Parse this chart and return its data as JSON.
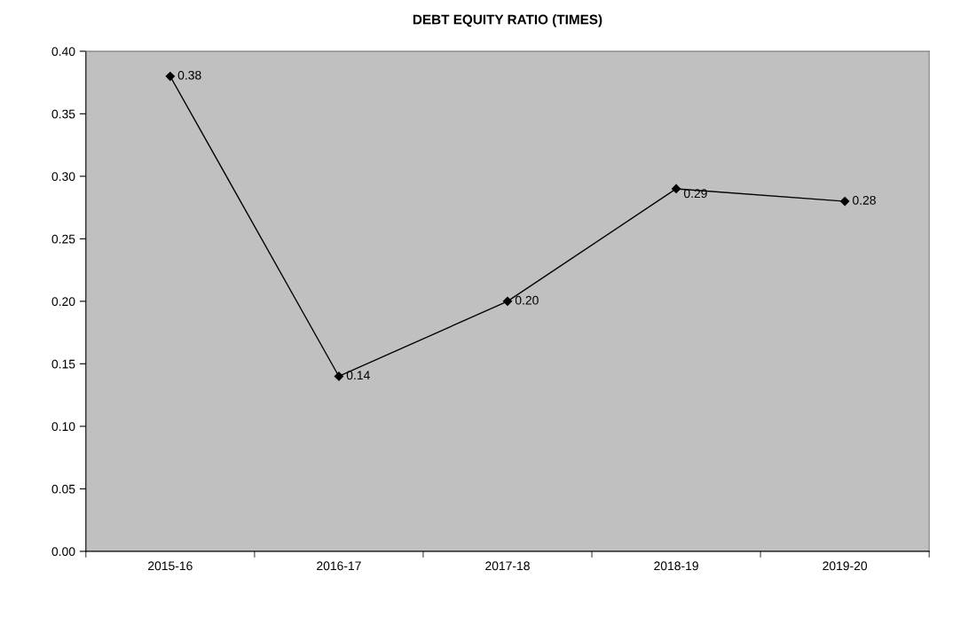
{
  "chart_data": {
    "type": "line",
    "title": "DEBT EQUITY RATIO (TIMES)",
    "categories": [
      "2015-16",
      "2016-17",
      "2017-18",
      "2018-19",
      "2019-20"
    ],
    "series": [
      {
        "color": "#000000",
        "values": [
          0.38,
          0.14,
          0.2,
          0.29,
          0.28
        ],
        "value_labels": [
          "0.38",
          "0.14",
          "0.20",
          "0.29",
          "0.28"
        ]
      }
    ],
    "ylim": [
      0,
      0.4
    ],
    "yticks": [
      {
        "value": 0,
        "label": "0.00"
      },
      {
        "value": 0.05,
        "label": "0.05"
      },
      {
        "value": 0.1,
        "label": "0.10"
      },
      {
        "value": 0.15,
        "label": "0.15"
      },
      {
        "value": 0.2,
        "label": "0.20"
      },
      {
        "value": 0.25,
        "label": "0.25"
      },
      {
        "value": 0.3,
        "label": "0.30"
      },
      {
        "value": 0.35,
        "label": "0.35"
      },
      {
        "value": 0.4,
        "label": "0.40"
      }
    ],
    "grid": false,
    "legend": false,
    "marker": "diamond",
    "line_style": "solid"
  }
}
